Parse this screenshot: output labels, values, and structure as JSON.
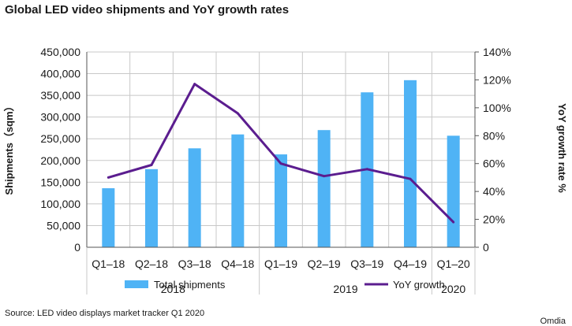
{
  "chart_data": {
    "type": "bar",
    "title": "Global LED video shipments and YoY growth rates",
    "categories": [
      "Q1–18",
      "Q2–18",
      "Q3–18",
      "Q4–18",
      "Q1–19",
      "Q2–19",
      "Q3–19",
      "Q4–19",
      "Q1–20"
    ],
    "groups": [
      {
        "label": "2018",
        "count": 4
      },
      {
        "label": "2019",
        "count": 4
      },
      {
        "label": "2020",
        "count": 1
      }
    ],
    "series": [
      {
        "name": "Total shipments",
        "type": "bar",
        "axis": "left",
        "color": "#4fb3f5",
        "values": [
          136000,
          180000,
          228000,
          260000,
          214000,
          270000,
          357000,
          385000,
          257000
        ]
      },
      {
        "name": "YoY growth",
        "type": "line",
        "axis": "right",
        "color": "#5b1d8f",
        "values": [
          50,
          59,
          117,
          96,
          60,
          51,
          56,
          49,
          18
        ]
      }
    ],
    "y_left": {
      "label": "Shipments（sqm）",
      "lim": [
        0,
        450000
      ],
      "ticks": [
        "0",
        "50,000",
        "100,000",
        "150,000",
        "200,000",
        "250,000",
        "300,000",
        "350,000",
        "400,000",
        "450,000"
      ]
    },
    "y_right": {
      "label": "YoY growth rate %",
      "lim": [
        0,
        140
      ],
      "ticks": [
        "0",
        "20%",
        "40%",
        "60%",
        "80%",
        "100%",
        "120%",
        "140%"
      ]
    },
    "grid": true,
    "legend": [
      "Total shipments",
      "YoY growth"
    ]
  },
  "footer": {
    "source": "Source: LED video displays market tracker Q1 2020",
    "brand": "Omdia"
  }
}
